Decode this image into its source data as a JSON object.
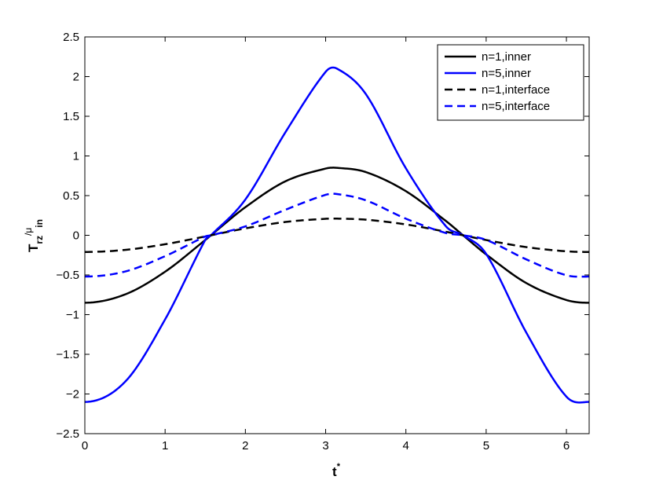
{
  "chart_data": {
    "type": "line",
    "xlabel": {
      "base": "t",
      "sup": "*"
    },
    "ylabel": {
      "base": "T",
      "sub": "rz",
      "rest": "/μ",
      "sub2": "in"
    },
    "xlim": [
      0,
      6.2832
    ],
    "ylim": [
      -2.5,
      2.5
    ],
    "xticks": [
      0,
      1,
      2,
      3,
      4,
      5,
      6
    ],
    "yticks": [
      -2.5,
      -2,
      -1.5,
      -1,
      -0.5,
      0,
      0.5,
      1,
      1.5,
      2,
      2.5
    ],
    "xtick_labels": [
      "0",
      "1",
      "2",
      "3",
      "4",
      "5",
      "6"
    ],
    "ytick_labels": [
      "−2.5",
      "−2",
      "−1.5",
      "−1",
      "−0.5",
      "0",
      "0.5",
      "1",
      "1.5",
      "2",
      "2.5"
    ],
    "grid": false,
    "legend_position": "top-right",
    "series": [
      {
        "name": "n=1,inner",
        "color": "#000000",
        "style": "solid",
        "x": [
          0,
          0.5,
          1,
          1.5,
          1.5708,
          2,
          2.5,
          3,
          3.1416,
          3.5,
          4,
          4.5,
          4.7124,
          5,
          5.5,
          6,
          6.2832
        ],
        "y": [
          -0.85,
          -0.746,
          -0.459,
          -0.06,
          0,
          0.354,
          0.681,
          0.841,
          0.85,
          0.797,
          0.556,
          0.179,
          0,
          -0.241,
          -0.602,
          -0.816,
          -0.85
        ]
      },
      {
        "name": "n=5,inner",
        "color": "#0000ff",
        "style": "solid",
        "x": [
          0,
          0.5,
          1,
          1.5,
          1.5708,
          2,
          2.5,
          3,
          3.1416,
          3.5,
          4,
          4.5,
          4.7124,
          5,
          5.5,
          6,
          6.2832
        ],
        "y": [
          -2.1,
          -1.848,
          -1.06,
          -0.059,
          0,
          0.451,
          1.3,
          2.06,
          2.1,
          1.781,
          0.844,
          0.112,
          0,
          -0.235,
          -1.226,
          -2.034,
          -2.1
        ]
      },
      {
        "name": "n=1,interface",
        "color": "#000000",
        "style": "dashed",
        "x": [
          0,
          0.5,
          1,
          1.5,
          1.5708,
          2,
          2.5,
          3,
          3.1416,
          3.5,
          4,
          4.5,
          4.7124,
          5,
          5.5,
          6,
          6.2832
        ],
        "y": [
          -0.21,
          -0.184,
          -0.113,
          -0.015,
          0,
          0.087,
          0.168,
          0.208,
          0.21,
          0.197,
          0.137,
          0.044,
          0,
          -0.06,
          -0.149,
          -0.202,
          -0.21
        ]
      },
      {
        "name": "n=5,interface",
        "color": "#0000ff",
        "style": "dashed",
        "x": [
          0,
          0.5,
          1,
          1.5,
          1.5708,
          2,
          2.5,
          3,
          3.1416,
          3.5,
          4,
          4.5,
          4.7124,
          5,
          5.5,
          6,
          6.2832
        ],
        "y": [
          -0.52,
          -0.457,
          -0.263,
          -0.015,
          0,
          0.112,
          0.322,
          0.51,
          0.52,
          0.441,
          0.209,
          0.028,
          0,
          -0.058,
          -0.304,
          -0.504,
          -0.52
        ]
      }
    ]
  }
}
